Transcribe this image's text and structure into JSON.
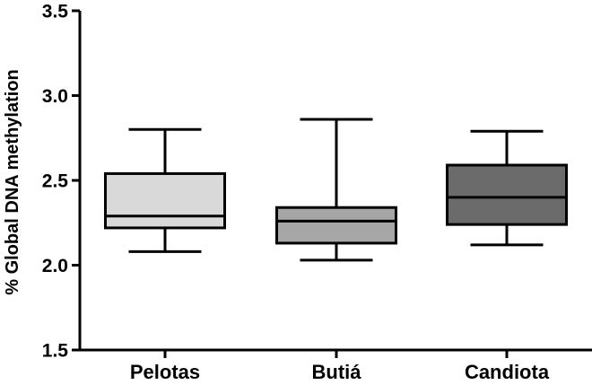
{
  "chart_data": {
    "type": "boxplot",
    "title": "",
    "xlabel": "",
    "ylabel": "% Global DNA methylation",
    "ylim": [
      1.5,
      3.5
    ],
    "yticks": [
      1.5,
      2.0,
      2.5,
      3.0,
      3.5
    ],
    "ytick_labels": [
      "1.5",
      "2.0",
      "2.5",
      "3.0",
      "3.5"
    ],
    "grid": false,
    "categories": [
      "Pelotas",
      "Butiá",
      "Candiota"
    ],
    "boxes": [
      {
        "category": "Pelotas",
        "min": 2.08,
        "q1": 2.22,
        "median": 2.29,
        "q3": 2.54,
        "max": 2.8,
        "color": "#d9d9d9"
      },
      {
        "category": "Butiá",
        "min": 2.03,
        "q1": 2.13,
        "median": 2.26,
        "q3": 2.34,
        "max": 2.86,
        "color": "#a6a6a6"
      },
      {
        "category": "Candiota",
        "min": 2.12,
        "q1": 2.24,
        "median": 2.4,
        "q3": 2.59,
        "max": 2.79,
        "color": "#6b6b6b"
      }
    ]
  }
}
